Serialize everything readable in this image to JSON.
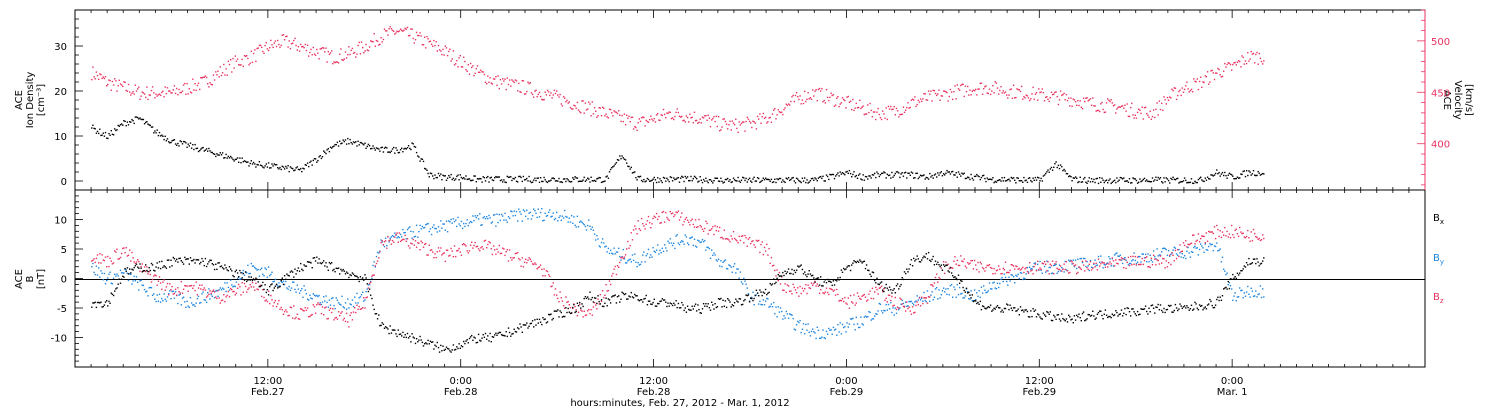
{
  "colors": {
    "density": "#000000",
    "velocity": "#e8335f",
    "bx": "#000000",
    "by": "#1f87e0",
    "bz": "#e8335f"
  },
  "chart_data": [
    {
      "type": "scatter",
      "panel": "plasma",
      "left_axis": {
        "label_lines": [
          "ACE",
          "Ion Density",
          "[cm⁻³]"
        ],
        "ylim": [
          -2,
          38
        ],
        "ticks": [
          0,
          10,
          20,
          30
        ]
      },
      "right_axis": {
        "label_lines": [
          "ACE",
          "Velocity",
          "[km/s]"
        ],
        "ylim": [
          355,
          530
        ],
        "ticks": [
          400,
          450,
          500
        ]
      },
      "series": [
        {
          "name": "Ion Density",
          "axis": "left",
          "x_hours": [
            1,
            2,
            3,
            4,
            5,
            6,
            7,
            8,
            9,
            10,
            11,
            12,
            13,
            14,
            15,
            16,
            17,
            18,
            19,
            20,
            21,
            22,
            23,
            24,
            25,
            26,
            27,
            28,
            29,
            30,
            31,
            32,
            33,
            34,
            35,
            36,
            37,
            38,
            39,
            40,
            41,
            42,
            43,
            44,
            45,
            46,
            47,
            48,
            49,
            50,
            51,
            52,
            53,
            54,
            55,
            56,
            57,
            58,
            59,
            60,
            61,
            62,
            63,
            64,
            65,
            66,
            67,
            68,
            69,
            70,
            71,
            72,
            73
          ],
          "values": [
            12,
            10,
            13,
            14,
            11,
            9,
            8,
            7,
            6,
            5,
            4,
            3.5,
            3,
            2.5,
            5,
            8,
            9,
            8,
            7,
            7,
            8,
            1.5,
            1,
            1,
            0.5,
            0.5,
            0.5,
            0.5,
            0.5,
            0.5,
            0.5,
            0.5,
            0.5,
            6,
            0.5,
            0.5,
            0.5,
            0.5,
            0.5,
            0.3,
            0.3,
            0.3,
            0.3,
            0.3,
            0.3,
            0.3,
            1,
            2,
            1,
            1.5,
            1.5,
            1.5,
            1,
            2,
            1.5,
            1,
            0.5,
            0.5,
            0.3,
            0.3,
            4,
            0.5,
            0.3,
            0.3,
            0.3,
            0.3,
            0.3,
            0.3,
            0.3,
            0.3,
            2,
            1,
            2
          ]
        },
        {
          "name": "Velocity",
          "axis": "right",
          "x_hours": [
            1,
            2,
            3,
            4,
            5,
            6,
            7,
            8,
            9,
            10,
            11,
            12,
            13,
            14,
            15,
            16,
            17,
            18,
            19,
            20,
            21,
            22,
            23,
            24,
            25,
            26,
            27,
            28,
            29,
            30,
            31,
            32,
            33,
            34,
            35,
            36,
            37,
            38,
            39,
            40,
            41,
            42,
            43,
            44,
            45,
            46,
            47,
            48,
            49,
            50,
            51,
            52,
            53,
            54,
            55,
            56,
            57,
            58,
            59,
            60,
            61,
            62,
            63,
            64,
            65,
            66,
            67,
            68,
            69,
            70,
            71,
            72,
            73
          ],
          "values": [
            470,
            460,
            455,
            450,
            450,
            450,
            455,
            460,
            470,
            480,
            485,
            495,
            500,
            495,
            490,
            485,
            488,
            495,
            505,
            510,
            505,
            498,
            490,
            480,
            470,
            462,
            458,
            455,
            450,
            445,
            440,
            435,
            430,
            425,
            420,
            425,
            430,
            428,
            425,
            420,
            418,
            420,
            425,
            435,
            445,
            450,
            445,
            440,
            435,
            430,
            432,
            440,
            445,
            448,
            452,
            455,
            455,
            452,
            450,
            448,
            446,
            444,
            440,
            438,
            436,
            432,
            430,
            445,
            455,
            460,
            470,
            475,
            485
          ]
        }
      ]
    },
    {
      "type": "scatter",
      "panel": "magnetic-field",
      "left_axis": {
        "label_lines": [
          "ACE",
          "B",
          "[nT]"
        ],
        "ylim": [
          -15,
          15
        ],
        "ticks": [
          -10,
          -5,
          0,
          5,
          10
        ]
      },
      "series": [
        {
          "name": "B",
          "subscript": "x",
          "x_hours": [
            1,
            2,
            3,
            4,
            5,
            6,
            7,
            8,
            9,
            10,
            11,
            12,
            13,
            14,
            15,
            16,
            17,
            18,
            19,
            20,
            21,
            22,
            23,
            24,
            25,
            26,
            27,
            28,
            29,
            30,
            31,
            32,
            33,
            34,
            35,
            36,
            37,
            38,
            39,
            40,
            41,
            42,
            43,
            44,
            45,
            46,
            47,
            48,
            49,
            50,
            51,
            52,
            53,
            54,
            55,
            56,
            57,
            58,
            59,
            60,
            61,
            62,
            63,
            64,
            65,
            66,
            67,
            68,
            69,
            70,
            71,
            72,
            73
          ],
          "values": [
            -4,
            -4,
            1,
            2,
            2,
            3,
            3,
            3,
            2,
            1,
            0,
            -2,
            0,
            2,
            3,
            2,
            1,
            0,
            -8,
            -9,
            -10,
            -11,
            -12,
            -11,
            -10,
            -10,
            -9,
            -8,
            -7,
            -6,
            -5,
            -3,
            -4,
            -3,
            -3,
            -4,
            -4,
            -5,
            -5,
            -4,
            -4,
            -3,
            -2,
            1,
            2,
            0,
            -1,
            2,
            3,
            -1,
            -2,
            3,
            4,
            2,
            0,
            -4,
            -5,
            -5,
            -5.5,
            -6,
            -6.5,
            -7,
            -6,
            -6,
            -5.5,
            -5.5,
            -5,
            -5,
            -5,
            -4.5,
            -4,
            0,
            3
          ]
        },
        {
          "name": "B",
          "subscript": "y",
          "x_hours": [
            1,
            2,
            3,
            4,
            5,
            6,
            7,
            8,
            9,
            10,
            11,
            12,
            13,
            14,
            15,
            16,
            17,
            18,
            19,
            20,
            21,
            22,
            23,
            24,
            25,
            26,
            27,
            28,
            29,
            30,
            31,
            32,
            33,
            34,
            35,
            36,
            37,
            38,
            39,
            40,
            41,
            42,
            43,
            44,
            45,
            46,
            47,
            48,
            49,
            50,
            51,
            52,
            53,
            54,
            55,
            56,
            57,
            58,
            59,
            60,
            61,
            62,
            63,
            64,
            65,
            66,
            67,
            68,
            69,
            70,
            71,
            72,
            73
          ],
          "values": [
            2,
            0,
            1,
            -1,
            -3,
            -3,
            -4,
            -3,
            -2,
            0,
            2,
            1,
            -1,
            -2,
            -3,
            -4,
            -4,
            -3,
            6,
            7,
            8,
            8.5,
            9,
            9.5,
            10,
            10,
            10.5,
            11,
            11,
            11,
            10,
            9,
            5,
            4,
            3,
            5,
            6,
            7,
            6,
            3,
            2,
            -3,
            -4,
            -6,
            -8,
            -9,
            -9,
            -8,
            -7,
            -5,
            -5,
            -4,
            -3,
            -2,
            -2,
            -3,
            -1,
            0,
            1,
            2,
            2,
            2.5,
            2.5,
            3,
            3.5,
            3.5,
            4,
            4.5,
            4.5,
            5,
            6,
            -3,
            -2
          ]
        },
        {
          "name": "B",
          "subscript": "z",
          "x_hours": [
            1,
            2,
            3,
            4,
            5,
            6,
            7,
            8,
            9,
            10,
            11,
            12,
            13,
            14,
            15,
            16,
            17,
            18,
            19,
            20,
            21,
            22,
            23,
            24,
            25,
            26,
            27,
            28,
            29,
            30,
            31,
            32,
            33,
            34,
            35,
            36,
            37,
            38,
            39,
            40,
            41,
            42,
            43,
            44,
            45,
            46,
            47,
            48,
            49,
            50,
            51,
            52,
            53,
            54,
            55,
            56,
            57,
            58,
            59,
            60,
            61,
            62,
            63,
            64,
            65,
            66,
            67,
            68,
            69,
            70,
            71,
            72,
            73
          ],
          "values": [
            4,
            3,
            5,
            2,
            0,
            -2,
            -1,
            -2,
            -3,
            -2,
            -1,
            -3,
            -5,
            -6,
            -5,
            -6,
            -7,
            -4,
            6,
            7,
            6,
            5,
            4,
            5,
            6,
            5,
            4,
            3,
            2,
            -3,
            -5,
            -6,
            -2,
            4,
            9,
            10,
            11,
            10,
            9,
            8,
            7,
            6,
            5,
            -1,
            -2,
            -1,
            -2,
            -4,
            -3,
            -2,
            -4,
            -5,
            -3,
            2,
            3,
            2,
            2,
            2,
            2,
            2,
            2,
            2,
            2,
            2.5,
            2.5,
            3,
            3,
            3,
            6,
            7,
            8,
            8,
            7.5
          ]
        }
      ]
    }
  ],
  "x_axis": {
    "ticks": [
      {
        "time": "12:00",
        "date": "Feb.27"
      },
      {
        "time": "0:00",
        "date": "Feb.28"
      },
      {
        "time": "12:00",
        "date": "Feb.28"
      },
      {
        "time": "0:00",
        "date": "Feb.29"
      },
      {
        "time": "12:00",
        "date": "Feb.29"
      },
      {
        "time": "0:00",
        "date": "Mar. 1"
      }
    ],
    "xlabel": "hours:minutes, Feb. 27, 2012 - Mar.  1, 2012",
    "xlim_hours": [
      0,
      84
    ]
  },
  "legend": {
    "items": [
      {
        "name": "B",
        "subscript": "x"
      },
      {
        "name": "B",
        "subscript": "y"
      },
      {
        "name": "B",
        "subscript": "z"
      }
    ]
  }
}
